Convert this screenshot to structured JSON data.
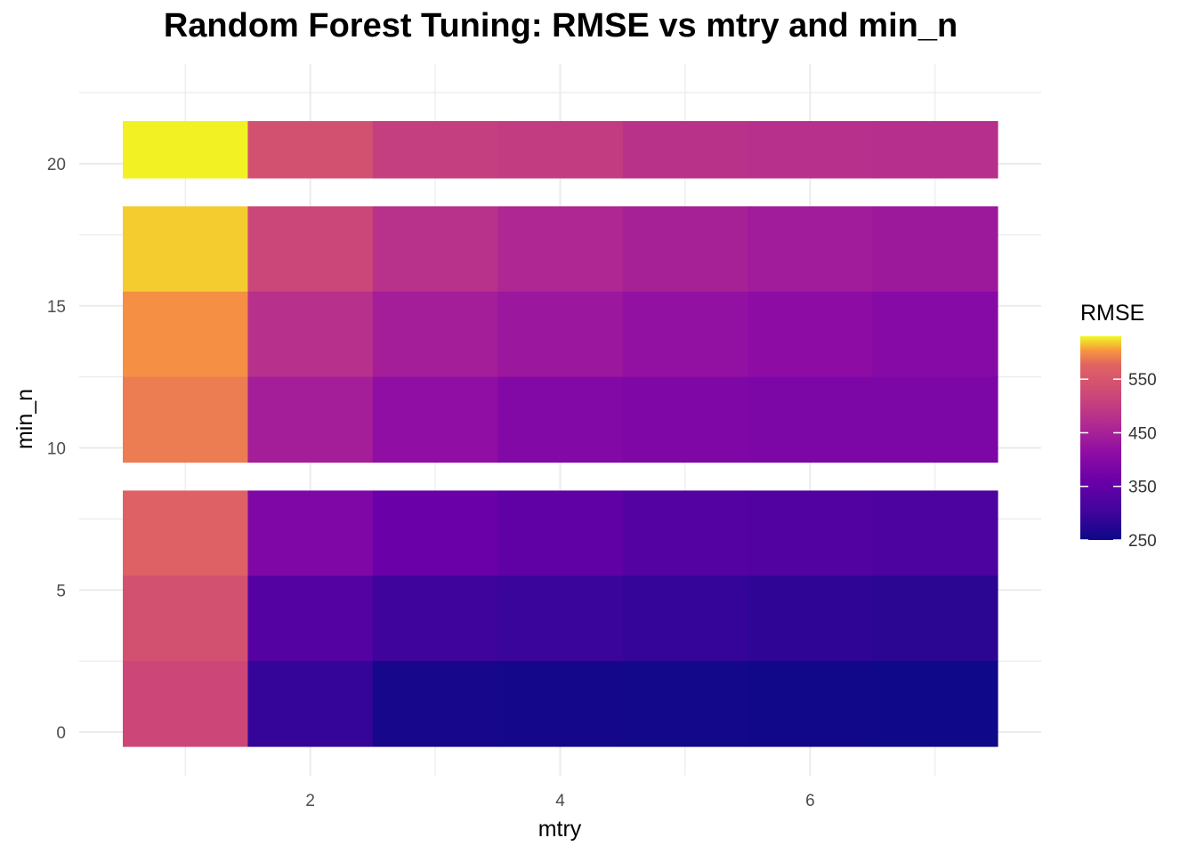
{
  "chart_data": {
    "type": "heatmap",
    "title": "Random Forest Tuning: RMSE vs mtry and min_n",
    "xlabel": "mtry",
    "ylabel": "min_n",
    "x_ticks": [
      2,
      4,
      6
    ],
    "y_ticks": [
      0,
      5,
      10,
      15,
      20
    ],
    "xlim": [
      0.5,
      7.5
    ],
    "ylim": [
      -0.5,
      22.5
    ],
    "grid": true,
    "legend": {
      "title": "RMSE",
      "position": "right",
      "ticks": [
        250,
        350,
        450,
        550
      ],
      "range": [
        250,
        630
      ],
      "palette": "plasma"
    },
    "mtry": [
      1,
      2,
      3,
      4,
      5,
      6,
      7
    ],
    "min_n_rows": [
      {
        "min_n": 20,
        "rmse": [
          628,
          540,
          505,
          500,
          482,
          478,
          476
        ]
      },
      {
        "min_n": 17,
        "rmse": [
          618,
          518,
          480,
          462,
          450,
          440,
          435
        ]
      },
      {
        "min_n": 14,
        "rmse": [
          600,
          478,
          445,
          432,
          420,
          410,
          400
        ]
      },
      {
        "min_n": 11,
        "rmse": [
          590,
          445,
          415,
          395,
          390,
          388,
          386
        ]
      },
      {
        "min_n": 7,
        "rmse": [
          570,
          390,
          360,
          345,
          330,
          325,
          320
        ]
      },
      {
        "min_n": 4,
        "rmse": [
          540,
          330,
          300,
          295,
          290,
          285,
          280
        ]
      },
      {
        "min_n": 1,
        "rmse": [
          520,
          290,
          260,
          258,
          256,
          254,
          252
        ]
      }
    ]
  }
}
